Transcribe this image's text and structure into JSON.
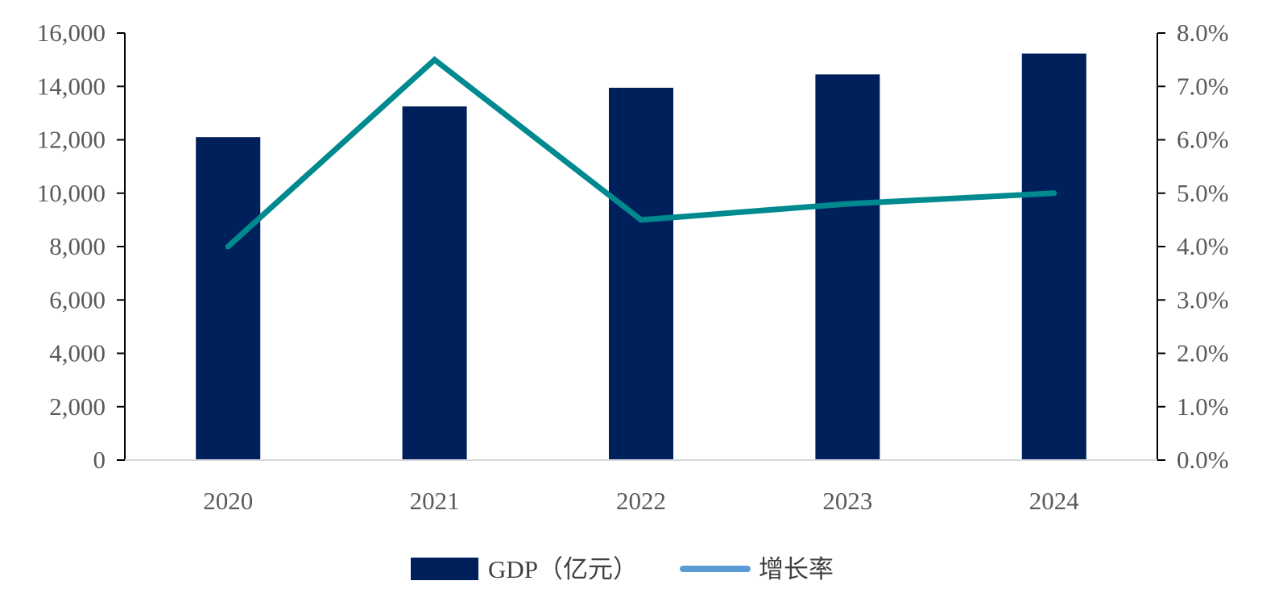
{
  "chart_data": {
    "type": "bar",
    "title": "",
    "xlabel": "",
    "ylabel": "",
    "categories": [
      "2020",
      "2021",
      "2022",
      "2023",
      "2024"
    ],
    "series": [
      {
        "name": "GDP（亿元）",
        "type": "bar",
        "axis": "left",
        "color": "#00205b",
        "values": [
          12100,
          13250,
          13950,
          14450,
          15230
        ]
      },
      {
        "name": "增长率",
        "type": "line",
        "axis": "right",
        "color": "#00898f",
        "legend_color": "#5b9bd5",
        "values": [
          4.0,
          7.5,
          4.5,
          4.8,
          5.0
        ]
      }
    ],
    "y_left": {
      "range": [
        0,
        16000
      ],
      "ticks": [
        "0",
        "2,000",
        "4,000",
        "6,000",
        "8,000",
        "10,000",
        "12,000",
        "14,000",
        "16,000"
      ]
    },
    "y_right": {
      "range": [
        0,
        8
      ],
      "ticks": [
        "0.0%",
        "1.0%",
        "2.0%",
        "3.0%",
        "4.0%",
        "5.0%",
        "6.0%",
        "7.0%",
        "8.0%"
      ]
    },
    "grid": false,
    "legend_position": "bottom"
  }
}
